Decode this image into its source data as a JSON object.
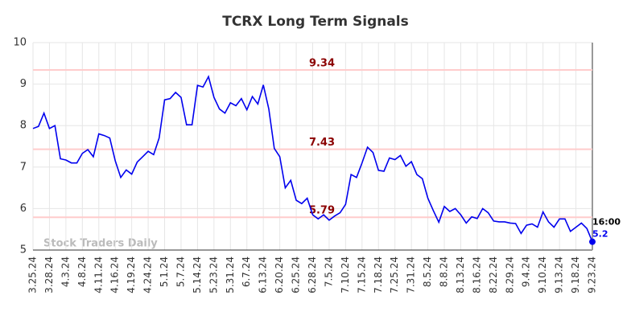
{
  "chart_data": {
    "type": "line",
    "title": "TCRX Long Term Signals",
    "watermark": "Stock Traders Daily",
    "time_label": "16:00",
    "categories": [
      "3.25.24",
      null,
      null,
      "3.28.24",
      null,
      null,
      "4.3.24",
      null,
      null,
      "4.8.24",
      null,
      null,
      "4.11.24",
      null,
      null,
      "4.16.24",
      null,
      null,
      "4.19.24",
      null,
      null,
      "4.24.24",
      null,
      null,
      "5.1.24",
      null,
      null,
      "5.7.24",
      null,
      null,
      "5.14.24",
      null,
      null,
      "5.23.24",
      null,
      null,
      "5.31.24",
      null,
      null,
      "6.7.24",
      null,
      null,
      "6.13.24",
      null,
      null,
      "6.20.24",
      null,
      null,
      "6.25.24",
      null,
      null,
      "6.28.24",
      null,
      null,
      "7.5.24",
      null,
      null,
      "7.10.24",
      null,
      null,
      "7.15.24",
      null,
      null,
      "7.18.24",
      null,
      null,
      "7.25.24",
      null,
      null,
      "7.31.24",
      null,
      null,
      "8.5.24",
      null,
      null,
      "8.8.24",
      null,
      null,
      "8.13.24",
      null,
      null,
      "8.16.24",
      null,
      null,
      "8.22.24",
      null,
      null,
      "8.29.24",
      null,
      null,
      "9.4.24",
      null,
      null,
      "9.10.24",
      null,
      null,
      "9.13.24",
      null,
      null,
      "9.18.24",
      null,
      null,
      "9.23.24"
    ],
    "values": [
      7.93,
      7.98,
      8.3,
      7.93,
      8.0,
      7.2,
      7.17,
      7.1,
      7.1,
      7.33,
      7.42,
      7.25,
      7.8,
      7.76,
      7.7,
      7.15,
      6.75,
      6.93,
      6.83,
      7.12,
      7.25,
      7.38,
      7.3,
      7.7,
      8.62,
      8.65,
      8.8,
      8.68,
      8.02,
      8.02,
      8.97,
      8.93,
      9.18,
      8.68,
      8.4,
      8.3,
      8.55,
      8.48,
      8.65,
      8.38,
      8.7,
      8.52,
      8.98,
      8.4,
      7.45,
      7.25,
      6.5,
      6.68,
      6.2,
      6.12,
      6.25,
      5.85,
      5.75,
      5.85,
      5.72,
      5.82,
      5.9,
      6.1,
      6.82,
      6.75,
      7.1,
      7.48,
      7.35,
      6.92,
      6.9,
      7.22,
      7.18,
      7.28,
      7.02,
      7.13,
      6.82,
      6.72,
      6.25,
      5.95,
      5.67,
      6.05,
      5.93,
      6.0,
      5.85,
      5.65,
      5.8,
      5.76,
      6.0,
      5.9,
      5.7,
      5.68,
      5.68,
      5.65,
      5.64,
      5.4,
      5.6,
      5.63,
      5.55,
      5.92,
      5.68,
      5.55,
      5.75,
      5.75,
      5.45,
      5.55,
      5.65,
      5.52,
      5.2
    ],
    "color": "#0000ee",
    "hlines": [
      9.34,
      7.43,
      5.79
    ],
    "hline_color": "#ffcccc",
    "hline_label_color": "#8b0000",
    "ylim": [
      5,
      10
    ],
    "yticks": [
      5,
      6,
      7,
      8,
      9,
      10
    ],
    "grid": true
  }
}
